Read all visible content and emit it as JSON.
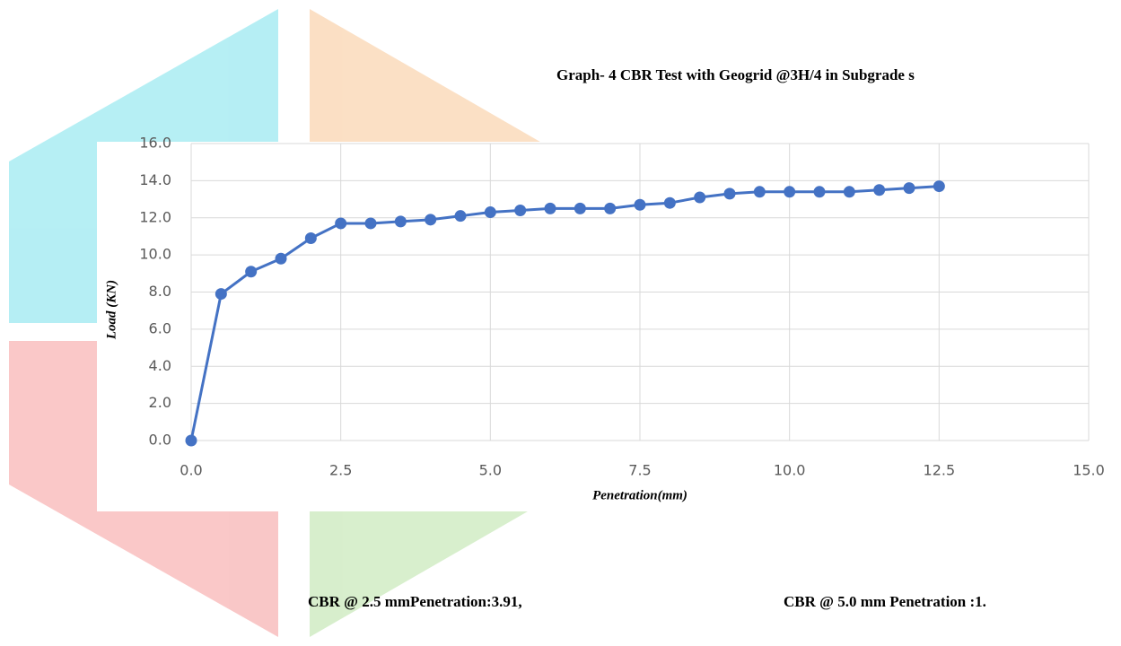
{
  "chart_data": {
    "type": "line",
    "title": "Graph- 4 CBR Test with  Geogrid @3H/4 in Subgrade s",
    "x_label": "Penetration(mm)",
    "y_label": "Load (KN)",
    "annotations": [
      "CBR @ 2.5 mmPenetration:3.91,",
      "CBR @ 5.0 mm Penetration :1."
    ],
    "x": [
      0,
      0.5,
      1,
      1.5,
      2,
      2.5,
      3,
      3.5,
      4,
      4.5,
      5,
      5.5,
      6,
      6.5,
      7,
      7.5,
      8,
      8.5,
      9,
      9.5,
      10,
      10.5,
      11,
      11.5,
      12,
      12.5
    ],
    "series": [
      {
        "name": "Load",
        "color": "#4472c4",
        "values": [
          0,
          7.9,
          9.1,
          9.8,
          10.9,
          11.7,
          11.7,
          11.8,
          11.9,
          12.1,
          12.3,
          12.4,
          12.5,
          12.5,
          12.5,
          12.7,
          12.8,
          13.1,
          13.3,
          13.4,
          13.4,
          13.4,
          13.4,
          13.5,
          13.6,
          13.7
        ]
      }
    ],
    "xlim": [
      0,
      15
    ],
    "xticks": [
      {
        "value": 0,
        "label": "0.0"
      },
      2.5,
      {
        "value": 5,
        "label": "5.0"
      },
      7.5,
      {
        "value": 10,
        "label": "10.0"
      },
      12.5,
      {
        "value": 15,
        "label": "15.0"
      }
    ],
    "ylim": [
      0,
      16
    ],
    "yticks": [
      {
        "value": 0,
        "label": "0.0"
      },
      {
        "value": 2,
        "label": "2.0"
      },
      {
        "value": 4,
        "label": "4.0"
      },
      {
        "value": 6,
        "label": "6.0"
      },
      {
        "value": 8,
        "label": "8.0"
      },
      {
        "value": 10,
        "label": "10.0"
      },
      {
        "value": 12,
        "label": "12.0"
      },
      {
        "value": 14,
        "label": "14.0"
      },
      {
        "value": 16,
        "label": "16.0"
      }
    ],
    "grid": true,
    "markers": true
  }
}
